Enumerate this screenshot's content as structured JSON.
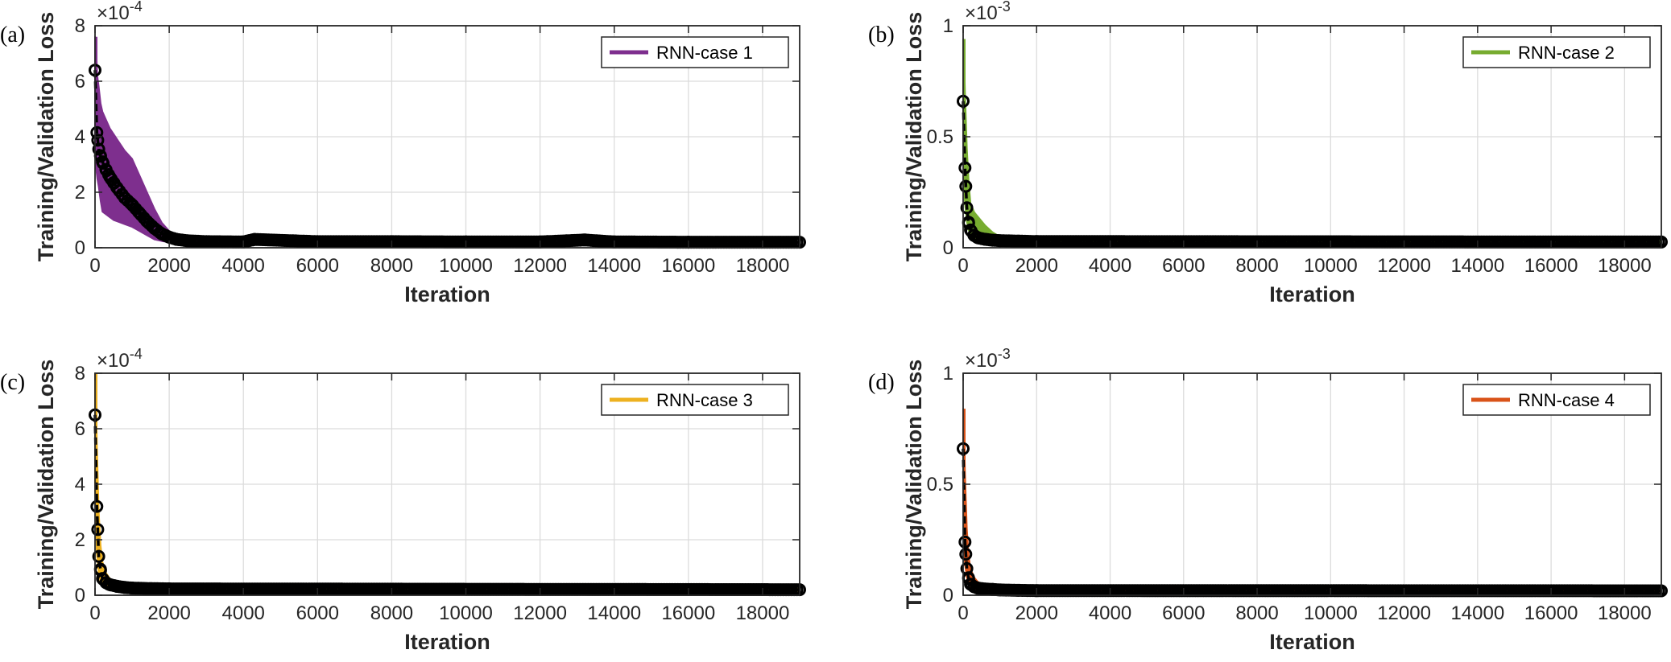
{
  "chart_data": [
    {
      "type": "line",
      "panel_label": "(a)",
      "xlabel": "Iteration",
      "ylabel": "Training/Validation Loss",
      "y_exponent": "×10",
      "y_exponent_power": "-4",
      "xlim": [
        0,
        19000
      ],
      "ylim": [
        0,
        8
      ],
      "xticks": [
        0,
        2000,
        4000,
        6000,
        8000,
        10000,
        12000,
        14000,
        16000,
        18000
      ],
      "yticks": [
        0,
        2,
        4,
        6,
        8
      ],
      "grid": true,
      "legend_position": "top-right",
      "color": "#7E2F8E",
      "series": [
        {
          "name": "RNN-case 1",
          "role": "training",
          "x": [
            0,
            20,
            60,
            100,
            150,
            200,
            300,
            400,
            500,
            600,
            800,
            1000,
            1200,
            1400,
            1600,
            1800,
            2000,
            2200,
            2500,
            3000,
            4000,
            6000,
            10000,
            14000,
            19000
          ],
          "upper": [
            7.6,
            7.5,
            6.2,
            5.8,
            5.2,
            4.9,
            4.6,
            4.3,
            4.1,
            3.9,
            3.5,
            3.2,
            2.6,
            2.0,
            1.4,
            0.9,
            0.6,
            0.4,
            0.3,
            0.25,
            0.24,
            0.24,
            0.24,
            0.24,
            0.22
          ],
          "lower": [
            3.5,
            3.0,
            2.5,
            2.2,
            1.7,
            1.3,
            1.2,
            1.1,
            1.0,
            0.95,
            0.85,
            0.75,
            0.6,
            0.45,
            0.3,
            0.24,
            0.2,
            0.18,
            0.16,
            0.16,
            0.16,
            0.16,
            0.16,
            0.16,
            0.15
          ]
        },
        {
          "role": "validation",
          "x": [
            0,
            50,
            100,
            150,
            200,
            300,
            400,
            500,
            600,
            800,
            1000,
            1200,
            1400,
            1600,
            1800,
            2000,
            2200,
            2500,
            3000,
            4000,
            4300,
            6000,
            8000,
            10000,
            12000,
            13200,
            14000,
            16000,
            19000
          ],
          "y": [
            6.4,
            4.15,
            3.55,
            3.3,
            3.1,
            2.8,
            2.55,
            2.35,
            2.15,
            1.8,
            1.55,
            1.25,
            0.95,
            0.7,
            0.5,
            0.38,
            0.3,
            0.25,
            0.22,
            0.21,
            0.3,
            0.22,
            0.22,
            0.21,
            0.21,
            0.28,
            0.21,
            0.2,
            0.2
          ]
        }
      ]
    },
    {
      "type": "line",
      "panel_label": "(b)",
      "xlabel": "Iteration",
      "ylabel": "Training/Validation Loss",
      "y_exponent": "×10",
      "y_exponent_power": "-3",
      "xlim": [
        0,
        19000
      ],
      "ylim": [
        0,
        1
      ],
      "xticks": [
        0,
        2000,
        4000,
        6000,
        8000,
        10000,
        12000,
        14000,
        16000,
        18000
      ],
      "yticks": [
        0,
        0.5,
        1
      ],
      "grid": true,
      "legend_position": "top-right",
      "color": "#77AC30",
      "series": [
        {
          "name": "RNN-case 2",
          "role": "training",
          "x": [
            0,
            20,
            50,
            100,
            150,
            200,
            300,
            400,
            600,
            800,
            1000,
            1500,
            2000,
            19000
          ],
          "upper": [
            0.94,
            0.9,
            0.7,
            0.45,
            0.3,
            0.2,
            0.16,
            0.14,
            0.1,
            0.07,
            0.05,
            0.04,
            0.035,
            0.03
          ],
          "lower": [
            0.5,
            0.3,
            0.2,
            0.12,
            0.08,
            0.06,
            0.04,
            0.03,
            0.025,
            0.022,
            0.02,
            0.02,
            0.02,
            0.02
          ]
        },
        {
          "role": "validation",
          "x": [
            0,
            50,
            100,
            150,
            200,
            300,
            400,
            600,
            800,
            1000,
            1500,
            2000,
            19000
          ],
          "y": [
            0.66,
            0.36,
            0.18,
            0.11,
            0.08,
            0.055,
            0.045,
            0.038,
            0.034,
            0.032,
            0.03,
            0.028,
            0.026
          ]
        }
      ]
    },
    {
      "type": "line",
      "panel_label": "(c)",
      "xlabel": "Iteration",
      "ylabel": "Training/Validation Loss",
      "y_exponent": "×10",
      "y_exponent_power": "-4",
      "xlim": [
        0,
        19000
      ],
      "ylim": [
        0,
        8
      ],
      "xticks": [
        0,
        2000,
        4000,
        6000,
        8000,
        10000,
        12000,
        14000,
        16000,
        18000
      ],
      "yticks": [
        0,
        2,
        4,
        6,
        8
      ],
      "grid": true,
      "legend_position": "top-right",
      "color": "#EDB120",
      "series": [
        {
          "name": "RNN-case 3",
          "role": "training",
          "x": [
            0,
            20,
            50,
            100,
            150,
            200,
            300,
            400,
            600,
            800,
            1000,
            1500,
            2000,
            19000
          ],
          "upper": [
            8.0,
            7.8,
            5.5,
            3.0,
            1.8,
            1.2,
            0.8,
            0.6,
            0.45,
            0.4,
            0.35,
            0.3,
            0.27,
            0.25
          ],
          "lower": [
            4.0,
            2.5,
            1.5,
            0.8,
            0.5,
            0.35,
            0.25,
            0.2,
            0.18,
            0.17,
            0.16,
            0.16,
            0.16,
            0.15
          ]
        },
        {
          "role": "validation",
          "x": [
            0,
            50,
            100,
            150,
            200,
            300,
            400,
            600,
            800,
            1000,
            1500,
            2000,
            19000
          ],
          "y": [
            6.5,
            3.2,
            1.4,
            0.9,
            0.6,
            0.45,
            0.38,
            0.32,
            0.28,
            0.26,
            0.24,
            0.23,
            0.2
          ]
        }
      ]
    },
    {
      "type": "line",
      "panel_label": "(d)",
      "xlabel": "Iteration",
      "ylabel": "Training/Validation Loss",
      "y_exponent": "×10",
      "y_exponent_power": "-3",
      "xlim": [
        0,
        19000
      ],
      "ylim": [
        0,
        1
      ],
      "xticks": [
        0,
        2000,
        4000,
        6000,
        8000,
        10000,
        12000,
        14000,
        16000,
        18000
      ],
      "yticks": [
        0,
        0.5,
        1
      ],
      "grid": true,
      "legend_position": "top-right",
      "color": "#D95319",
      "series": [
        {
          "name": "RNN-case 4",
          "role": "training",
          "x": [
            0,
            20,
            50,
            100,
            150,
            200,
            300,
            400,
            600,
            800,
            1000,
            1500,
            2000,
            19000
          ],
          "upper": [
            0.84,
            0.8,
            0.55,
            0.3,
            0.18,
            0.12,
            0.08,
            0.06,
            0.045,
            0.04,
            0.035,
            0.03,
            0.028,
            0.025
          ],
          "lower": [
            0.45,
            0.25,
            0.14,
            0.08,
            0.05,
            0.035,
            0.025,
            0.02,
            0.018,
            0.017,
            0.016,
            0.016,
            0.016,
            0.015
          ]
        },
        {
          "role": "validation",
          "x": [
            0,
            50,
            100,
            150,
            200,
            300,
            400,
            600,
            800,
            1000,
            1500,
            2000,
            19000
          ],
          "y": [
            0.66,
            0.24,
            0.12,
            0.075,
            0.05,
            0.038,
            0.032,
            0.028,
            0.026,
            0.024,
            0.022,
            0.021,
            0.02
          ]
        }
      ]
    }
  ]
}
